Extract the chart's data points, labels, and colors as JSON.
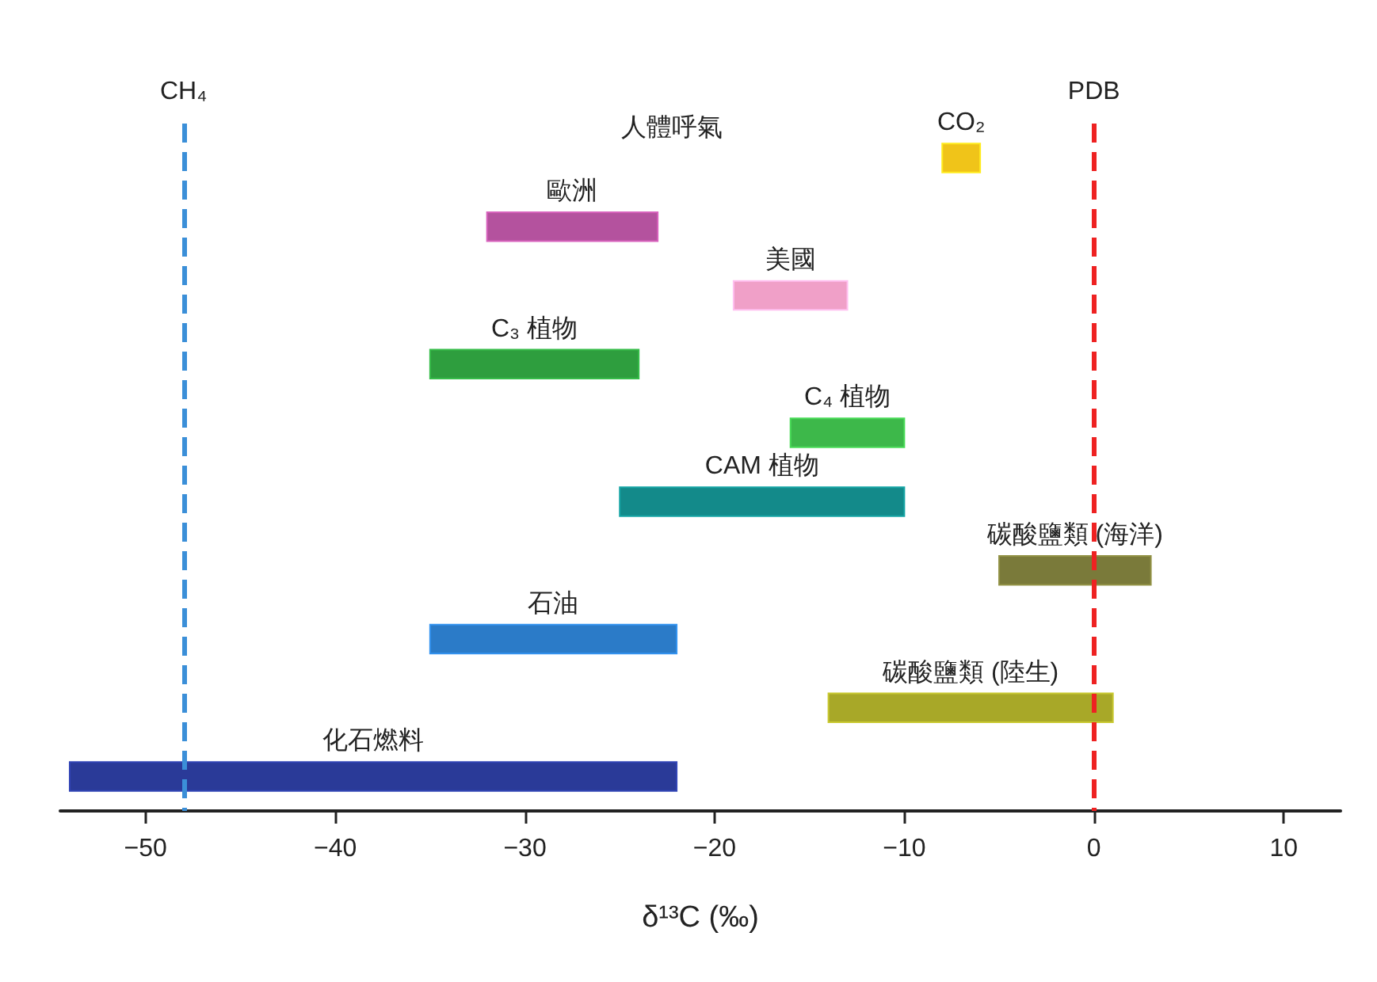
{
  "chart_data": {
    "type": "bar",
    "orientation": "horizontal",
    "xlabel": "δ¹³C (‰)",
    "categories": [
      "CO₂",
      "歐洲",
      "美國",
      "C₃ 植物",
      "C₄ 植物",
      "CAM 植物",
      "碳酸鹽類 (海洋)",
      "石油",
      "碳酸鹽類 (陸生)",
      "化石燃料"
    ],
    "base": [
      -8,
      -32,
      -19,
      -35,
      -16,
      -25,
      -5,
      -35,
      -14,
      -54
    ],
    "values": [
      2,
      9,
      6,
      11,
      6,
      15,
      8,
      13,
      15,
      32
    ],
    "colors": [
      "#f0c419",
      "#b4529e",
      "#f0a0c8",
      "#2e9e3e",
      "#3db84a",
      "#138a8a",
      "#7a7a3a",
      "#2b7bc8",
      "#a8a828",
      "#2a3a98"
    ],
    "xlim": [
      -54.5,
      13
    ],
    "xticks": [
      -50,
      -40,
      -30,
      -20,
      -10,
      0,
      10
    ],
    "ref_lines": [
      {
        "axis": "x",
        "value": -48,
        "label": "CH₄",
        "color": "#3b8fd8",
        "line_style": "dashed"
      },
      {
        "axis": "x",
        "value": 0,
        "label": "PDB",
        "color": "#ee2222",
        "line_style": "dashed"
      }
    ],
    "annotations": [
      "人體呼氣"
    ],
    "data_labels": false,
    "grid": false
  }
}
